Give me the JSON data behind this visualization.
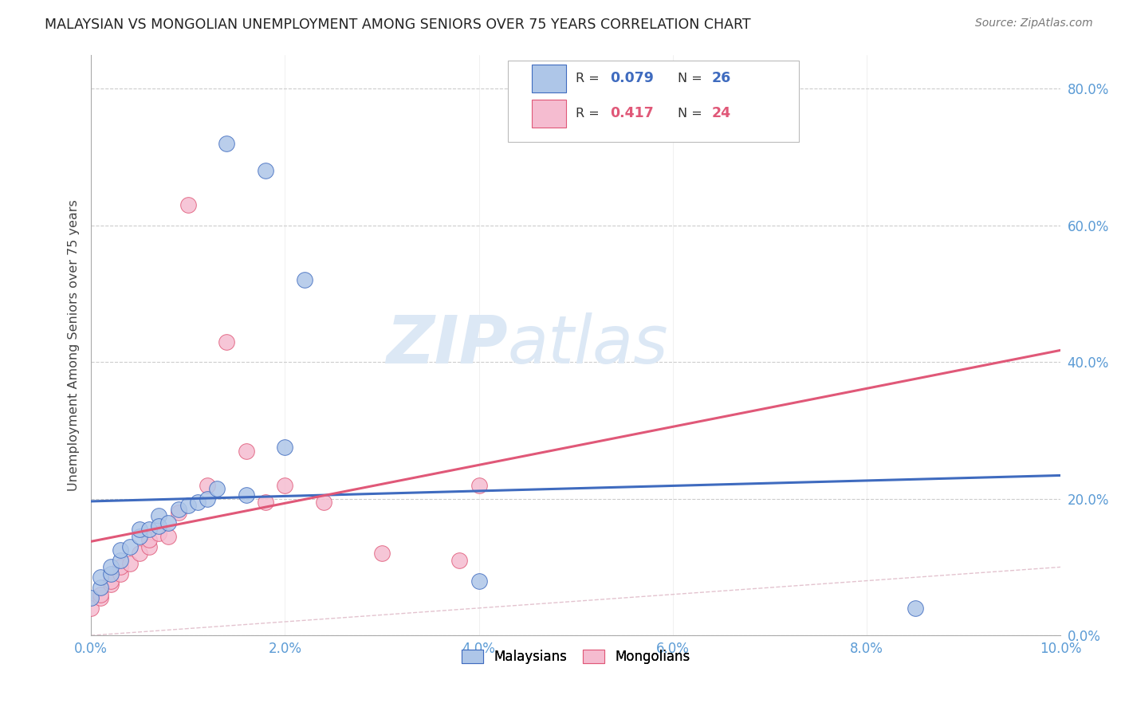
{
  "title": "MALAYSIAN VS MONGOLIAN UNEMPLOYMENT AMONG SENIORS OVER 75 YEARS CORRELATION CHART",
  "source": "Source: ZipAtlas.com",
  "ylabel": "Unemployment Among Seniors over 75 years",
  "xlim": [
    0.0,
    0.1
  ],
  "ylim": [
    0.0,
    0.85
  ],
  "xticks": [
    0.0,
    0.02,
    0.04,
    0.06,
    0.08,
    0.1
  ],
  "xtick_labels": [
    "0.0%",
    "2.0%",
    "4.0%",
    "6.0%",
    "8.0%",
    "10.0%"
  ],
  "yticks": [
    0.0,
    0.2,
    0.4,
    0.6,
    0.8
  ],
  "ytick_labels": [
    "0.0%",
    "20.0%",
    "40.0%",
    "60.0%",
    "80.0%"
  ],
  "malaysian_color": "#aec6e8",
  "mongolian_color": "#f5bcd0",
  "trend_malaysian_color": "#3f6bbf",
  "trend_mongolian_color": "#e05878",
  "diagonal_color": "#c8c8da",
  "background_color": "#ffffff",
  "grid_color": "#cccccc",
  "axis_label_color": "#5b9bd5",
  "watermark_zip": "ZIP",
  "watermark_atlas": "atlas",
  "watermark_color": "#dce8f5",
  "malaysians_x": [
    0.0,
    0.001,
    0.001,
    0.002,
    0.002,
    0.003,
    0.003,
    0.004,
    0.005,
    0.005,
    0.006,
    0.007,
    0.007,
    0.008,
    0.009,
    0.01,
    0.011,
    0.012,
    0.013,
    0.014,
    0.016,
    0.018,
    0.02,
    0.022,
    0.04,
    0.085
  ],
  "malaysians_y": [
    0.055,
    0.07,
    0.085,
    0.09,
    0.1,
    0.11,
    0.125,
    0.13,
    0.145,
    0.155,
    0.155,
    0.175,
    0.16,
    0.165,
    0.185,
    0.19,
    0.195,
    0.2,
    0.215,
    0.72,
    0.205,
    0.68,
    0.275,
    0.52,
    0.08,
    0.04
  ],
  "mongolians_x": [
    0.0,
    0.001,
    0.001,
    0.002,
    0.002,
    0.003,
    0.003,
    0.004,
    0.005,
    0.006,
    0.006,
    0.007,
    0.008,
    0.009,
    0.01,
    0.012,
    0.014,
    0.016,
    0.018,
    0.02,
    0.024,
    0.03,
    0.038,
    0.04
  ],
  "mongolians_y": [
    0.04,
    0.055,
    0.06,
    0.075,
    0.08,
    0.09,
    0.1,
    0.105,
    0.12,
    0.13,
    0.14,
    0.15,
    0.145,
    0.18,
    0.63,
    0.22,
    0.43,
    0.27,
    0.195,
    0.22,
    0.195,
    0.12,
    0.11,
    0.22
  ]
}
